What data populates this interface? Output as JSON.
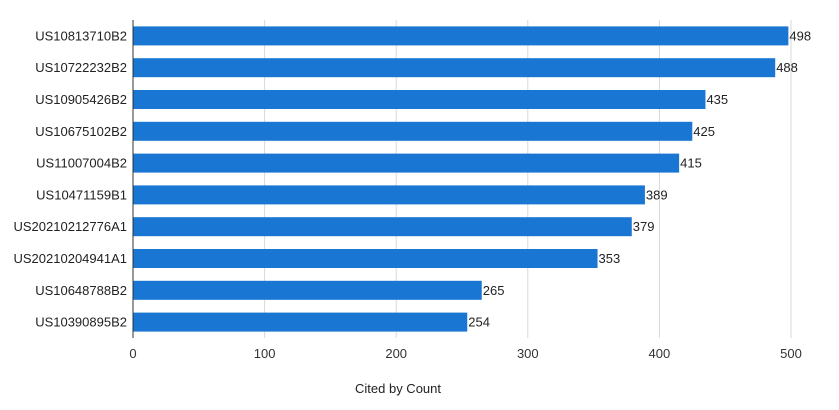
{
  "chart_data": {
    "type": "bar",
    "orientation": "horizontal",
    "categories": [
      "US10813710B2",
      "US10722232B2",
      "US10905426B2",
      "US10675102B2",
      "US11007004B2",
      "US10471159B1",
      "US20210212776A1",
      "US20210204941A1",
      "US10648788B2",
      "US10390895B2"
    ],
    "values": [
      498,
      488,
      435,
      425,
      415,
      389,
      379,
      353,
      265,
      254
    ],
    "xlabel": "Cited by Count",
    "xlim": [
      0,
      500
    ],
    "xticks": [
      0,
      100,
      200,
      300,
      400,
      500
    ],
    "grid": true,
    "bar_color": "#1976d2",
    "grid_color": "#d9d9d9",
    "axis_color": "#333333"
  }
}
